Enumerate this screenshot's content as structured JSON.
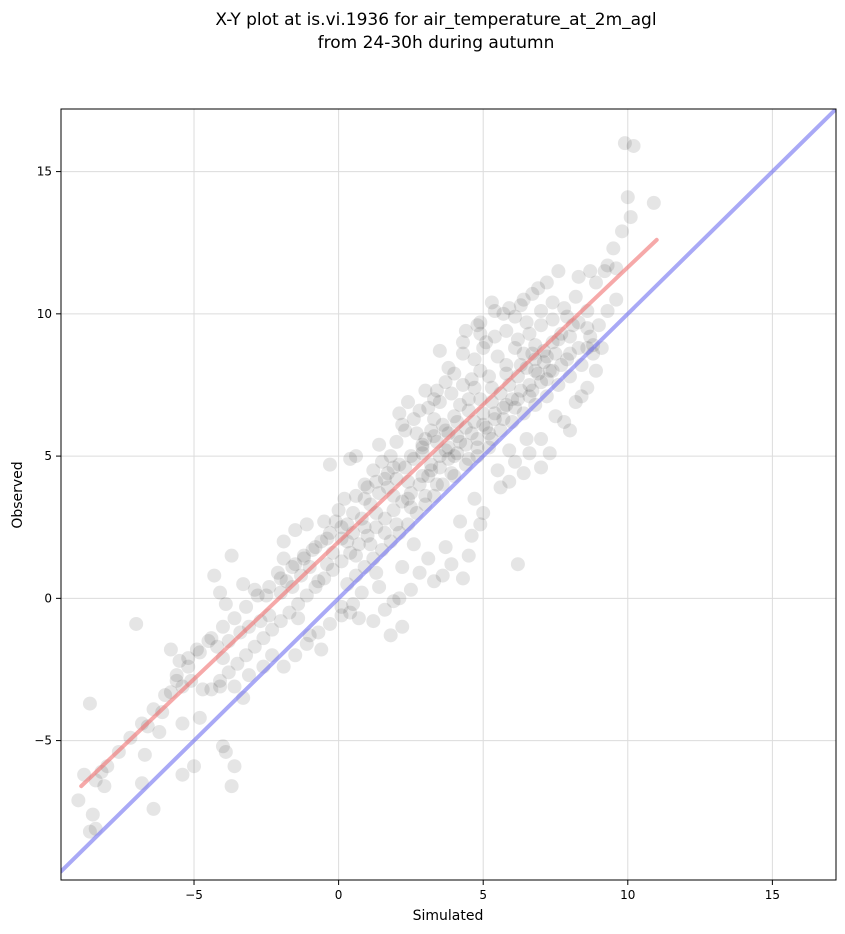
{
  "chart_data": {
    "type": "scatter",
    "title": [
      "X-Y plot at is.vi.1936 for air_temperature_at_2m_agl",
      "from 24-30h during autumn"
    ],
    "xlabel": "Simulated",
    "ylabel": "Observed",
    "xlim": [
      -9.6,
      17.2
    ],
    "ylim": [
      -9.9,
      17.2
    ],
    "xticks": [
      -5,
      0,
      5,
      10,
      15
    ],
    "yticks": [
      -5,
      0,
      5,
      10,
      15
    ],
    "xtick_labels": [
      "−5",
      "0",
      "5",
      "10",
      "15"
    ],
    "ytick_labels": [
      "−5",
      "0",
      "5",
      "10",
      "15"
    ],
    "grid": true,
    "colors": {
      "points": "#000000",
      "fit_line": "#f07070",
      "identity_line": "#6f6ff0"
    },
    "lines": [
      {
        "role": "fit",
        "x": [
          -8.9,
          11.0
        ],
        "y": [
          -6.6,
          12.6
        ]
      },
      {
        "role": "identity",
        "x": [
          -9.6,
          17.2
        ],
        "y": [
          -9.6,
          17.2
        ]
      }
    ],
    "points": [
      [
        9.9,
        16.0
      ],
      [
        10.2,
        15.9
      ],
      [
        10.0,
        14.1
      ],
      [
        10.9,
        13.9
      ],
      [
        10.1,
        13.4
      ],
      [
        9.8,
        12.9
      ],
      [
        9.5,
        12.3
      ],
      [
        9.3,
        11.7
      ],
      [
        9.6,
        11.6
      ],
      [
        9.2,
        11.5
      ],
      [
        8.9,
        11.1
      ],
      [
        8.7,
        11.5
      ],
      [
        8.3,
        11.3
      ],
      [
        7.6,
        11.5
      ],
      [
        7.2,
        11.1
      ],
      [
        6.9,
        10.9
      ],
      [
        6.7,
        10.7
      ],
      [
        6.3,
        10.3
      ],
      [
        5.3,
        10.4
      ],
      [
        4.8,
        9.6
      ],
      [
        4.3,
        9.0
      ],
      [
        4.9,
        9.3
      ],
      [
        5.7,
        10.0
      ],
      [
        6.1,
        9.9
      ],
      [
        6.5,
        9.7
      ],
      [
        7.0,
        9.6
      ],
      [
        7.4,
        9.8
      ],
      [
        7.9,
        9.9
      ],
      [
        8.3,
        9.7
      ],
      [
        8.6,
        9.5
      ],
      [
        8.8,
        8.9
      ],
      [
        8.0,
        8.6
      ],
      [
        7.7,
        8.2
      ],
      [
        7.3,
        8.0
      ],
      [
        6.9,
        7.9
      ],
      [
        6.6,
        7.5
      ],
      [
        6.3,
        7.3
      ],
      [
        6.0,
        7.0
      ],
      [
        5.7,
        6.7
      ],
      [
        5.4,
        6.3
      ],
      [
        5.1,
        6.0
      ],
      [
        4.8,
        5.6
      ],
      [
        4.4,
        5.4
      ],
      [
        4.1,
        5.1
      ],
      [
        3.8,
        4.9
      ],
      [
        3.5,
        4.6
      ],
      [
        3.1,
        4.3
      ],
      [
        2.8,
        4.0
      ],
      [
        2.5,
        3.7
      ],
      [
        2.2,
        3.4
      ],
      [
        1.9,
        3.1
      ],
      [
        1.6,
        2.8
      ],
      [
        1.3,
        2.5
      ],
      [
        1.0,
        2.2
      ],
      [
        0.7,
        1.9
      ],
      [
        0.4,
        1.6
      ],
      [
        0.1,
        1.3
      ],
      [
        -0.2,
        1.0
      ],
      [
        -0.5,
        0.7
      ],
      [
        -0.8,
        0.4
      ],
      [
        -1.1,
        0.1
      ],
      [
        -1.4,
        -0.2
      ],
      [
        -1.7,
        -0.5
      ],
      [
        -2.0,
        -0.8
      ],
      [
        -2.3,
        -1.1
      ],
      [
        -2.6,
        -1.4
      ],
      [
        -2.9,
        -1.7
      ],
      [
        -3.2,
        -2.0
      ],
      [
        -3.5,
        -2.3
      ],
      [
        -3.8,
        -2.6
      ],
      [
        -4.1,
        -2.9
      ],
      [
        -4.4,
        -3.2
      ],
      [
        3.0,
        5.6
      ],
      [
        3.2,
        5.9
      ],
      [
        3.4,
        5.5
      ],
      [
        2.9,
        5.3
      ],
      [
        3.6,
        6.1
      ],
      [
        3.3,
        6.3
      ],
      [
        3.8,
        5.8
      ],
      [
        4.0,
        6.4
      ],
      [
        2.7,
        5.8
      ],
      [
        3.1,
        6.7
      ],
      [
        3.5,
        6.9
      ],
      [
        2.6,
        6.3
      ],
      [
        4.2,
        6.8
      ],
      [
        4.5,
        7.0
      ],
      [
        4.7,
        7.4
      ],
      [
        3.9,
        7.2
      ],
      [
        3.0,
        7.3
      ],
      [
        2.4,
        6.9
      ],
      [
        2.1,
        6.5
      ],
      [
        2.3,
        5.9
      ],
      [
        2.0,
        5.5
      ],
      [
        1.8,
        5.0
      ],
      [
        1.5,
        4.8
      ],
      [
        1.2,
        4.5
      ],
      [
        1.6,
        4.2
      ],
      [
        0.9,
        4.0
      ],
      [
        0.6,
        3.6
      ],
      [
        0.2,
        3.5
      ],
      [
        0.0,
        3.1
      ],
      [
        -0.1,
        2.7
      ],
      [
        0.3,
        2.6
      ],
      [
        0.5,
        2.3
      ],
      [
        0.1,
        2.1
      ],
      [
        -0.3,
        2.3
      ],
      [
        -0.6,
        2.0
      ],
      [
        -0.9,
        1.7
      ],
      [
        -1.2,
        1.4
      ],
      [
        -1.5,
        1.2
      ],
      [
        -1.9,
        1.4
      ],
      [
        -2.1,
        0.9
      ],
      [
        -1.8,
        0.6
      ],
      [
        -2.0,
        0.2
      ],
      [
        -1.6,
        0.4
      ],
      [
        -1.3,
        0.8
      ],
      [
        -1.0,
        1.1
      ],
      [
        -0.7,
        0.6
      ],
      [
        -0.4,
        1.2
      ],
      [
        -1.9,
        2.0
      ],
      [
        -1.5,
        2.4
      ],
      [
        -1.1,
        2.6
      ],
      [
        -0.5,
        2.7
      ],
      [
        0.8,
        2.8
      ],
      [
        1.1,
        3.3
      ],
      [
        1.4,
        3.7
      ],
      [
        1.7,
        3.9
      ],
      [
        2.0,
        4.2
      ],
      [
        2.3,
        4.6
      ],
      [
        2.6,
        4.9
      ],
      [
        2.9,
        5.1
      ],
      [
        3.2,
        4.7
      ],
      [
        3.5,
        5.0
      ],
      [
        3.8,
        5.3
      ],
      [
        4.1,
        5.7
      ],
      [
        4.4,
        6.0
      ],
      [
        4.7,
        6.2
      ],
      [
        5.0,
        6.5
      ],
      [
        5.3,
        6.9
      ],
      [
        5.6,
        7.2
      ],
      [
        5.9,
        7.5
      ],
      [
        6.2,
        7.8
      ],
      [
        6.5,
        8.1
      ],
      [
        6.8,
        8.4
      ],
      [
        7.1,
        8.7
      ],
      [
        7.4,
        9.0
      ],
      [
        7.7,
        9.3
      ],
      [
        8.0,
        9.2
      ],
      [
        7.5,
        8.6
      ],
      [
        7.1,
        8.3
      ],
      [
        6.8,
        8.9
      ],
      [
        6.4,
        8.6
      ],
      [
        6.1,
        8.8
      ],
      [
        5.8,
        8.2
      ],
      [
        5.5,
        8.5
      ],
      [
        5.2,
        7.8
      ],
      [
        4.9,
        8.0
      ],
      [
        4.6,
        7.7
      ],
      [
        4.3,
        7.5
      ],
      [
        4.0,
        7.9
      ],
      [
        3.7,
        7.6
      ],
      [
        3.4,
        7.3
      ],
      [
        5.0,
        8.8
      ],
      [
        5.4,
        9.2
      ],
      [
        5.8,
        9.4
      ],
      [
        6.2,
        9.1
      ],
      [
        6.6,
        9.3
      ],
      [
        7.0,
        10.1
      ],
      [
        7.4,
        10.4
      ],
      [
        7.8,
        10.2
      ],
      [
        8.2,
        10.6
      ],
      [
        6.4,
        10.5
      ],
      [
        5.9,
        10.2
      ],
      [
        6.8,
        8.0
      ],
      [
        7.2,
        7.7
      ],
      [
        6.7,
        7.3
      ],
      [
        6.2,
        7.0
      ],
      [
        5.8,
        6.8
      ],
      [
        5.4,
        6.5
      ],
      [
        5.0,
        6.1
      ],
      [
        4.6,
        5.8
      ],
      [
        4.2,
        5.5
      ],
      [
        5.3,
        5.6
      ],
      [
        5.6,
        5.9
      ],
      [
        6.0,
        6.2
      ],
      [
        6.4,
        6.5
      ],
      [
        6.8,
        6.8
      ],
      [
        7.2,
        7.1
      ],
      [
        7.6,
        7.5
      ],
      [
        8.0,
        7.8
      ],
      [
        8.4,
        8.2
      ],
      [
        8.8,
        8.6
      ],
      [
        4.0,
        4.3
      ],
      [
        4.4,
        4.7
      ],
      [
        4.8,
        5.0
      ],
      [
        5.2,
        5.3
      ],
      [
        3.6,
        4.0
      ],
      [
        3.3,
        3.6
      ],
      [
        3.0,
        3.3
      ],
      [
        2.7,
        3.0
      ],
      [
        2.4,
        2.6
      ],
      [
        2.1,
        2.3
      ],
      [
        1.8,
        2.0
      ],
      [
        1.5,
        1.7
      ],
      [
        1.2,
        1.4
      ],
      [
        0.9,
        1.1
      ],
      [
        0.6,
        0.8
      ],
      [
        0.3,
        0.5
      ],
      [
        6.5,
        5.6
      ],
      [
        7.0,
        5.6
      ],
      [
        7.3,
        5.1
      ],
      [
        7.8,
        6.2
      ],
      [
        8.0,
        5.9
      ],
      [
        8.4,
        7.1
      ],
      [
        7.0,
        4.6
      ],
      [
        6.4,
        4.4
      ],
      [
        5.9,
        4.1
      ],
      [
        5.5,
        4.5
      ],
      [
        4.7,
        3.5
      ],
      [
        4.9,
        2.6
      ],
      [
        4.6,
        2.2
      ],
      [
        4.2,
        2.7
      ],
      [
        3.7,
        1.8
      ],
      [
        3.9,
        1.2
      ],
      [
        3.6,
        0.8
      ],
      [
        3.3,
        0.6
      ],
      [
        2.8,
        0.9
      ],
      [
        2.5,
        0.3
      ],
      [
        2.1,
        0.0
      ],
      [
        1.9,
        -0.1
      ],
      [
        1.6,
        -0.4
      ],
      [
        1.8,
        -1.3
      ],
      [
        1.2,
        -0.8
      ],
      [
        0.7,
        -0.7
      ],
      [
        0.4,
        -0.5
      ],
      [
        6.2,
        1.2
      ],
      [
        4.3,
        0.7
      ],
      [
        3.1,
        1.4
      ],
      [
        2.6,
        1.9
      ],
      [
        2.2,
        1.1
      ],
      [
        1.3,
        0.9
      ],
      [
        0.8,
        0.2
      ],
      [
        0.5,
        -0.2
      ],
      [
        0.1,
        -0.6
      ],
      [
        -0.3,
        -0.9
      ],
      [
        -0.7,
        -1.2
      ],
      [
        -1.1,
        -1.6
      ],
      [
        -1.5,
        -2.0
      ],
      [
        -1.9,
        -2.4
      ],
      [
        -2.3,
        -2.0
      ],
      [
        -2.6,
        -2.4
      ],
      [
        -3.1,
        -2.7
      ],
      [
        -3.3,
        -3.5
      ],
      [
        -3.6,
        -3.1
      ],
      [
        -4.0,
        -2.1
      ],
      [
        -4.2,
        -1.7
      ],
      [
        -4.5,
        -1.5
      ],
      [
        -4.9,
        -1.8
      ],
      [
        -5.2,
        -2.1
      ],
      [
        -5.5,
        -2.2
      ],
      [
        -5.8,
        -1.8
      ],
      [
        -5.6,
        -2.7
      ],
      [
        -5.4,
        -3.1
      ],
      [
        -5.8,
        -3.3
      ],
      [
        -6.1,
        -4.0
      ],
      [
        -5.4,
        -4.4
      ],
      [
        -5.1,
        -2.9
      ],
      [
        -4.7,
        -3.2
      ],
      [
        -4.1,
        -3.1
      ],
      [
        -3.8,
        -1.5
      ],
      [
        -3.4,
        -1.2
      ],
      [
        -3.1,
        -1.0
      ],
      [
        -2.7,
        -0.8
      ],
      [
        -2.4,
        -0.6
      ],
      [
        -3.9,
        -0.2
      ],
      [
        -4.1,
        0.2
      ],
      [
        -4.3,
        0.8
      ],
      [
        -3.7,
        1.5
      ],
      [
        -3.3,
        0.5
      ],
      [
        -2.9,
        0.3
      ],
      [
        -2.5,
        0.1
      ],
      [
        -7.0,
        -0.9
      ],
      [
        -8.6,
        -3.7
      ],
      [
        -6.6,
        -4.5
      ],
      [
        -4.0,
        -5.2
      ],
      [
        -3.9,
        -5.4
      ],
      [
        -3.6,
        -5.9
      ],
      [
        -3.7,
        -6.6
      ],
      [
        -5.0,
        -5.9
      ],
      [
        -5.4,
        -6.2
      ],
      [
        -6.7,
        -5.5
      ],
      [
        -6.8,
        -6.5
      ],
      [
        -6.4,
        -7.4
      ],
      [
        -8.2,
        -6.1
      ],
      [
        -8.8,
        -6.2
      ],
      [
        -8.4,
        -6.4
      ],
      [
        -8.1,
        -6.6
      ],
      [
        -9.0,
        -7.1
      ],
      [
        -8.5,
        -7.6
      ],
      [
        -8.6,
        -8.2
      ],
      [
        -8.4,
        -8.1
      ],
      [
        -6.2,
        -4.7
      ],
      [
        -4.8,
        -4.2
      ],
      [
        -1.4,
        -0.7
      ],
      [
        -1.0,
        -1.3
      ],
      [
        -0.6,
        -1.8
      ],
      [
        0.1,
        -0.3
      ],
      [
        1.4,
        0.4
      ],
      [
        2.2,
        -1.0
      ],
      [
        4.5,
        1.5
      ],
      [
        5.0,
        3.0
      ],
      [
        5.6,
        3.9
      ],
      [
        5.9,
        5.2
      ],
      [
        6.1,
        4.8
      ],
      [
        6.6,
        5.1
      ],
      [
        7.5,
        6.4
      ],
      [
        8.2,
        6.9
      ],
      [
        8.6,
        7.4
      ],
      [
        8.9,
        8.0
      ],
      [
        9.1,
        8.8
      ],
      [
        8.6,
        8.8
      ],
      [
        2.4,
        3.5
      ],
      [
        1.9,
        4.6
      ],
      [
        1.0,
        3.9
      ],
      [
        0.4,
        4.9
      ],
      [
        -0.3,
        4.7
      ],
      [
        0.6,
        5.0
      ],
      [
        1.4,
        5.4
      ],
      [
        2.2,
        6.1
      ],
      [
        2.8,
        6.6
      ],
      [
        3.3,
        7.0
      ],
      [
        3.8,
        8.1
      ],
      [
        4.3,
        8.6
      ],
      [
        4.7,
        8.4
      ],
      [
        5.1,
        9.0
      ],
      [
        3.5,
        8.7
      ],
      [
        4.4,
        9.4
      ],
      [
        4.9,
        9.7
      ],
      [
        5.4,
        10.1
      ],
      [
        3.7,
        5.2
      ],
      [
        4.0,
        5.0
      ],
      [
        3.2,
        4.5
      ],
      [
        2.9,
        4.3
      ],
      [
        2.4,
        4.1
      ],
      [
        1.9,
        3.6
      ],
      [
        1.3,
        3.0
      ],
      [
        0.9,
        2.5
      ],
      [
        0.3,
        2.0
      ],
      [
        -0.2,
        1.6
      ],
      [
        0.6,
        1.5
      ],
      [
        1.1,
        1.9
      ],
      [
        1.6,
        2.3
      ],
      [
        2.0,
        2.6
      ],
      [
        2.5,
        3.2
      ],
      [
        3.0,
        3.6
      ],
      [
        3.4,
        4.0
      ],
      [
        3.9,
        4.4
      ],
      [
        4.5,
        4.9
      ],
      [
        4.8,
        5.3
      ],
      [
        5.2,
        5.8
      ],
      [
        5.7,
        6.3
      ],
      [
        6.1,
        6.7
      ],
      [
        6.6,
        7.1
      ],
      [
        7.0,
        7.6
      ],
      [
        7.4,
        8.0
      ],
      [
        7.9,
        8.4
      ],
      [
        8.3,
        8.8
      ],
      [
        8.7,
        9.2
      ],
      [
        9.0,
        9.6
      ],
      [
        9.3,
        10.1
      ],
      [
        9.6,
        10.5
      ],
      [
        8.6,
        10.1
      ],
      [
        8.1,
        9.6
      ],
      [
        7.6,
        9.1
      ],
      [
        7.2,
        8.5
      ],
      [
        6.7,
        8.6
      ],
      [
        6.3,
        8.2
      ],
      [
        5.8,
        7.9
      ],
      [
        5.3,
        7.4
      ],
      [
        4.9,
        7.0
      ],
      [
        4.5,
        6.6
      ],
      [
        4.1,
        6.2
      ],
      [
        3.7,
        5.9
      ],
      [
        3.3,
        5.7
      ],
      [
        2.9,
        5.4
      ],
      [
        2.5,
        5.0
      ],
      [
        2.1,
        4.7
      ],
      [
        1.7,
        4.4
      ],
      [
        1.3,
        4.1
      ],
      [
        0.9,
        3.5
      ],
      [
        0.5,
        3.0
      ],
      [
        0.1,
        2.5
      ],
      [
        -0.4,
        2.1
      ],
      [
        -0.8,
        1.8
      ],
      [
        -1.2,
        1.5
      ],
      [
        -1.6,
        1.1
      ],
      [
        -2.0,
        0.7
      ],
      [
        -2.4,
        0.4
      ],
      [
        -2.8,
        0.1
      ],
      [
        -3.2,
        -0.3
      ],
      [
        -3.6,
        -0.7
      ],
      [
        -4.0,
        -1.0
      ],
      [
        -4.4,
        -1.4
      ],
      [
        -4.8,
        -1.9
      ],
      [
        -5.2,
        -2.4
      ],
      [
        -5.6,
        -2.9
      ],
      [
        -6.0,
        -3.4
      ],
      [
        -6.4,
        -3.9
      ],
      [
        -6.8,
        -4.4
      ],
      [
        -7.2,
        -4.9
      ],
      [
        -7.6,
        -5.4
      ],
      [
        -8.0,
        -5.9
      ]
    ]
  }
}
